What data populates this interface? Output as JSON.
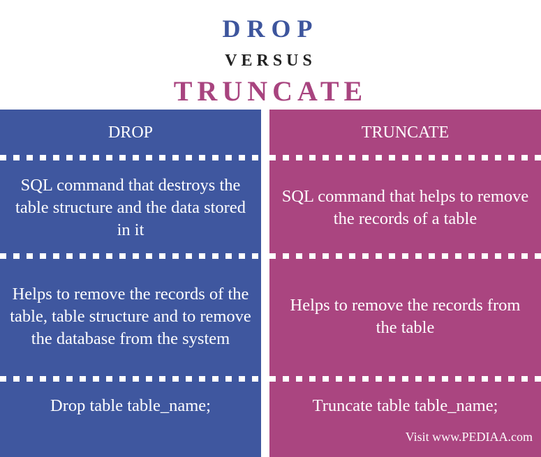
{
  "title": {
    "main": "DROP",
    "versus": "VERSUS",
    "compared": "TRUNCATE"
  },
  "columns": [
    {
      "header": "DROP",
      "rows": [
        "SQL command that destroys the table structure and the data stored in it",
        "Helps to remove the records of the table, table structure and to remove the database from the system",
        "Drop table table_name;"
      ]
    },
    {
      "header": "TRUNCATE",
      "rows": [
        "SQL command that helps to remove the records of a table",
        "Helps to remove the records from the table",
        "Truncate table table_name;"
      ]
    }
  ],
  "credit": "Visit www.PEDIAA.com",
  "colors": {
    "drop": "#3f579f",
    "truncate": "#aa4580",
    "drop_title": "#3d559d",
    "truncate_title": "#a8447f"
  }
}
